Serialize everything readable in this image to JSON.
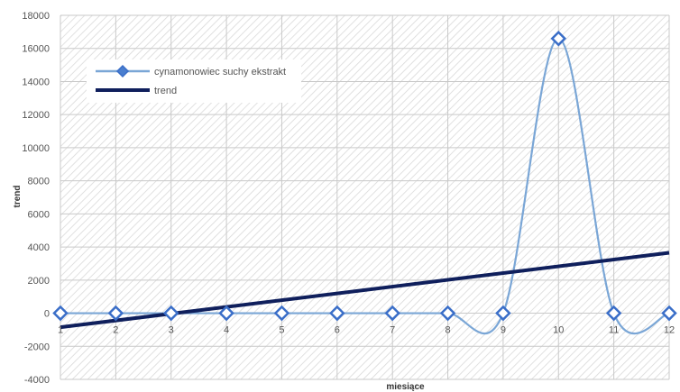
{
  "chart_data": {
    "type": "line",
    "xlabel": "miesiące",
    "ylabel": "trend",
    "x": [
      1,
      2,
      3,
      4,
      5,
      6,
      7,
      8,
      9,
      10,
      11,
      12
    ],
    "xlim": [
      1,
      12
    ],
    "ylim": [
      -4000,
      18000
    ],
    "yticks": [
      -4000,
      -2000,
      0,
      2000,
      4000,
      6000,
      8000,
      10000,
      12000,
      14000,
      16000,
      18000
    ],
    "grid": true,
    "legend_position": "top-left",
    "series": [
      {
        "name": "cynamonowiec suchy ekstrakt",
        "values": [
          0,
          0,
          0,
          0,
          0,
          0,
          0,
          0,
          0,
          16600,
          0,
          0
        ],
        "color": "#7aa6d6",
        "marker": "diamond",
        "smooth": true
      },
      {
        "name": "trend",
        "values": [
          -850,
          -450,
          -50,
          350,
          750,
          1150,
          1550,
          1950,
          2350,
          2800,
          3200,
          3650
        ],
        "color": "#0f1f5c",
        "marker": "none",
        "smooth": false
      }
    ]
  }
}
